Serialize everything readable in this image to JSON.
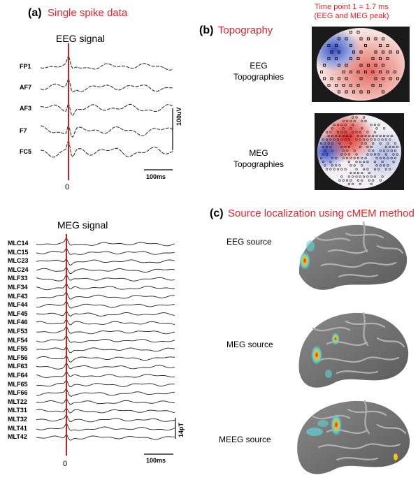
{
  "panel_a": {
    "label": "(a)",
    "title": "Single spike data",
    "eeg": {
      "title": "EEG signal",
      "channels": [
        "FP1",
        "AF7",
        "AF3",
        "F7",
        "FC5"
      ],
      "amplitude_scale": "100uV",
      "time_scale": "100ms",
      "time_zero": "0"
    },
    "meg": {
      "title": "MEG signal",
      "channels": [
        "MLC14",
        "MLC15",
        "MLC23",
        "MLC24",
        "MLF33",
        "MLF34",
        "MLF43",
        "MLF44",
        "MLF45",
        "MLF46",
        "MLF53",
        "MLF54",
        "MLF55",
        "MLF56",
        "MLF63",
        "MLF64",
        "MLF65",
        "MLF66",
        "MLT22",
        "MLT31",
        "MLT32",
        "MLT41",
        "MLT42"
      ],
      "amplitude_scale": "14pT",
      "time_scale": "100ms",
      "time_zero": "0"
    }
  },
  "panel_b": {
    "label": "(b)",
    "title": "Topography",
    "time_note_line1": "Time point 1  =  1.7 ms",
    "time_note_line2": "(EEG and MEG peak)",
    "eeg_label_1": "EEG",
    "eeg_label_2": "Topographies",
    "meg_label_1": "MEG",
    "meg_label_2": "Topographies"
  },
  "panel_c": {
    "label": "(c)",
    "title": "Source localization using cMEM method",
    "sources": [
      "EEG source",
      "MEG source",
      "MEEG source"
    ]
  },
  "colors": {
    "accent": "#e2262b",
    "cortex": "#6f6f6f",
    "topo_red": "#e03a35",
    "topo_blue": "#3a4fc4"
  }
}
